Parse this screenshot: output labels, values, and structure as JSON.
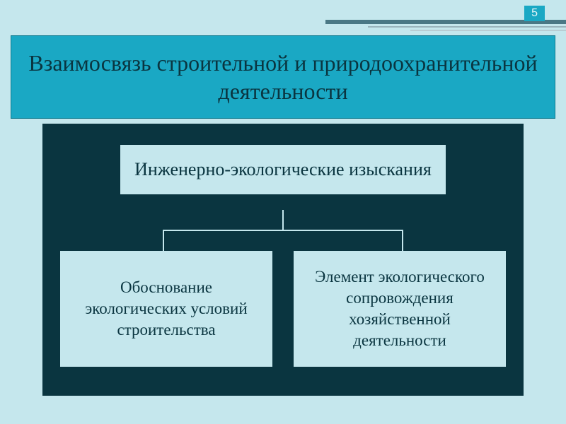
{
  "page_number": "5",
  "title": "Взаимосвязь строительной и природоохранительной деятельности",
  "diagram": {
    "type": "tree",
    "root": {
      "text": "Инженерно-экологические изыскания"
    },
    "children": [
      {
        "text": "Обоснование экологических условий строительства"
      },
      {
        "text": "Элемент экологического сопровождения хозяйственной деятельности"
      }
    ],
    "colors": {
      "slide_background": "#c5e7ed",
      "title_banner": "#1aa8c4",
      "diagram_background": "#0a3540",
      "box_background": "#c5e7ed",
      "box_text": "#0a3540",
      "connector": "#c5e7ed",
      "page_number_bg": "#1aa8c4",
      "page_number_text": "#e8f5f8"
    },
    "typography": {
      "title_fontsize": 32,
      "root_fontsize": 26,
      "child_fontsize": 23,
      "font_family": "Georgia, serif"
    },
    "layout": {
      "slide_width": 800,
      "slide_height": 600,
      "root_box_width": 460,
      "child_box_min_height": 160
    }
  }
}
